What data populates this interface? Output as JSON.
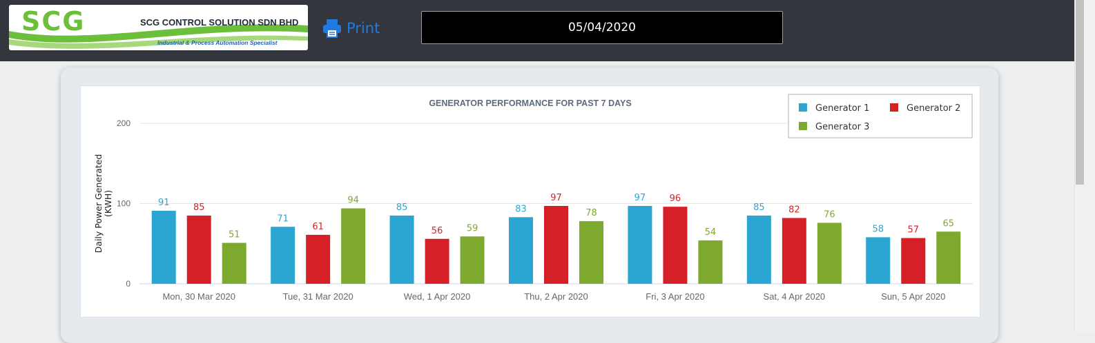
{
  "header": {
    "logo": {
      "mark": "SCG",
      "company": "SCG CONTROL SOLUTION SDN BHD",
      "tagline": "Industrial & Process Automation Specialist"
    },
    "print_label": "Print",
    "date_value": "05/04/2020"
  },
  "colors": {
    "topbar": "#33373d",
    "print_accent": "#1f7be0",
    "generator_1": "#2ba6d3",
    "generator_2": "#d52027",
    "generator_3": "#7daa2e"
  },
  "chart_data": {
    "type": "bar",
    "title": "GENERATOR PERFORMANCE FOR PAST 7 DAYS",
    "ylabel": "Daily Power Generated (KWH)",
    "ylim": [
      0,
      200
    ],
    "yticks": [
      0,
      100,
      200
    ],
    "grid": true,
    "legend_position": "top-right",
    "categories": [
      "Mon, 30 Mar 2020",
      "Tue, 31 Mar 2020",
      "Wed, 1 Apr 2020",
      "Thu, 2 Apr 2020",
      "Fri, 3 Apr 2020",
      "Sat, 4 Apr 2020",
      "Sun, 5 Apr 2020"
    ],
    "series": [
      {
        "name": "Generator 1",
        "color": "#2ba6d3",
        "values": [
          91,
          71,
          85,
          83,
          97,
          85,
          58
        ]
      },
      {
        "name": "Generator 2",
        "color": "#d52027",
        "values": [
          85,
          61,
          56,
          97,
          96,
          82,
          57
        ]
      },
      {
        "name": "Generator 3",
        "color": "#7daa2e",
        "values": [
          51,
          94,
          59,
          78,
          54,
          76,
          65
        ]
      }
    ]
  }
}
